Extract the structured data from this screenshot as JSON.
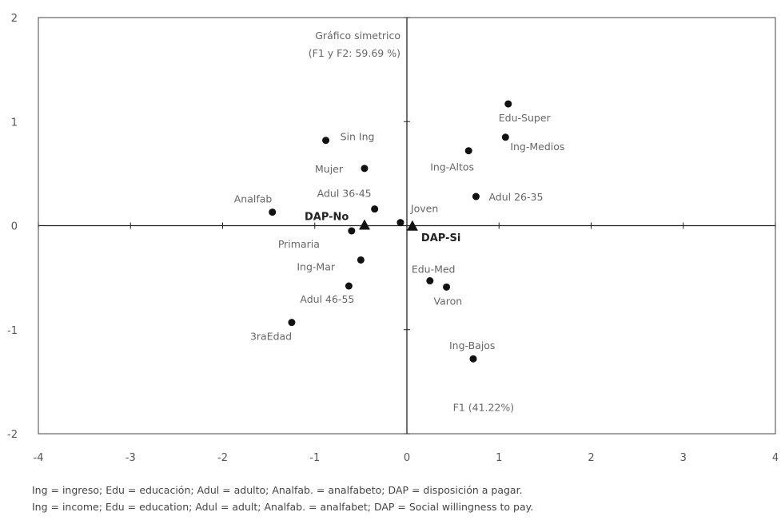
{
  "chart_data": {
    "type": "scatter",
    "title": "Gráfico simetrico",
    "subtitle": "(F1 y F2: 59.69 %)",
    "xlabel": "F1 (41.22%)",
    "ylabel": "",
    "xlim": [
      -4,
      4
    ],
    "ylim": [
      -2,
      2
    ],
    "xticks": [
      "-4",
      "-3",
      "-2",
      "-1",
      "0",
      "1",
      "2",
      "3",
      "4"
    ],
    "yticks": [
      "2",
      "1",
      "0",
      "-1",
      "-2"
    ],
    "grid": false,
    "points": [
      {
        "label": "Edu-Super",
        "x": 1.1,
        "y": 1.17,
        "marker": "circle"
      },
      {
        "label": "Ing-Medios",
        "x": 1.07,
        "y": 0.85,
        "marker": "circle"
      },
      {
        "label": "Ing-Altos",
        "x": 0.67,
        "y": 0.72,
        "marker": "circle"
      },
      {
        "label": "Adul 26-35",
        "x": 0.75,
        "y": 0.28,
        "marker": "circle"
      },
      {
        "label": "Sin Ing",
        "x": -0.88,
        "y": 0.82,
        "marker": "circle"
      },
      {
        "label": "Mujer",
        "x": -0.46,
        "y": 0.55,
        "marker": "circle"
      },
      {
        "label": "Adul 36-45",
        "x": -0.35,
        "y": 0.16,
        "marker": "circle"
      },
      {
        "label": "Analfab",
        "x": -1.46,
        "y": 0.13,
        "marker": "circle"
      },
      {
        "label": "Joven",
        "x": -0.07,
        "y": 0.03,
        "marker": "circle"
      },
      {
        "label": "DAP-No",
        "x": -0.46,
        "y": 0.0,
        "marker": "triangle"
      },
      {
        "label": "DAP-Si",
        "x": 0.06,
        "y": -0.01,
        "marker": "triangle"
      },
      {
        "label": "Primaria",
        "x": -0.6,
        "y": -0.05,
        "marker": "circle"
      },
      {
        "label": "Ing-Mar",
        "x": -0.5,
        "y": -0.33,
        "marker": "circle"
      },
      {
        "label": "Edu-Med",
        "x": 0.25,
        "y": -0.53,
        "marker": "circle"
      },
      {
        "label": "Varon",
        "x": 0.43,
        "y": -0.59,
        "marker": "circle"
      },
      {
        "label": "Adul 46-55",
        "x": -0.63,
        "y": -0.58,
        "marker": "circle"
      },
      {
        "label": "3raEdad",
        "x": -1.25,
        "y": -0.93,
        "marker": "circle"
      },
      {
        "label": "Ing-Bajos",
        "x": 0.72,
        "y": -1.28,
        "marker": "circle"
      }
    ]
  },
  "notes": {
    "line1": "Ing = ingreso; Edu = educación; Adul = adulto; Analfab. = analfabeto; DAP = disposición a pagar.",
    "line2": "Ing = income; Edu = education; Adul = adult; Analfab. = analfabet; DAP = Social willingness to pay."
  }
}
